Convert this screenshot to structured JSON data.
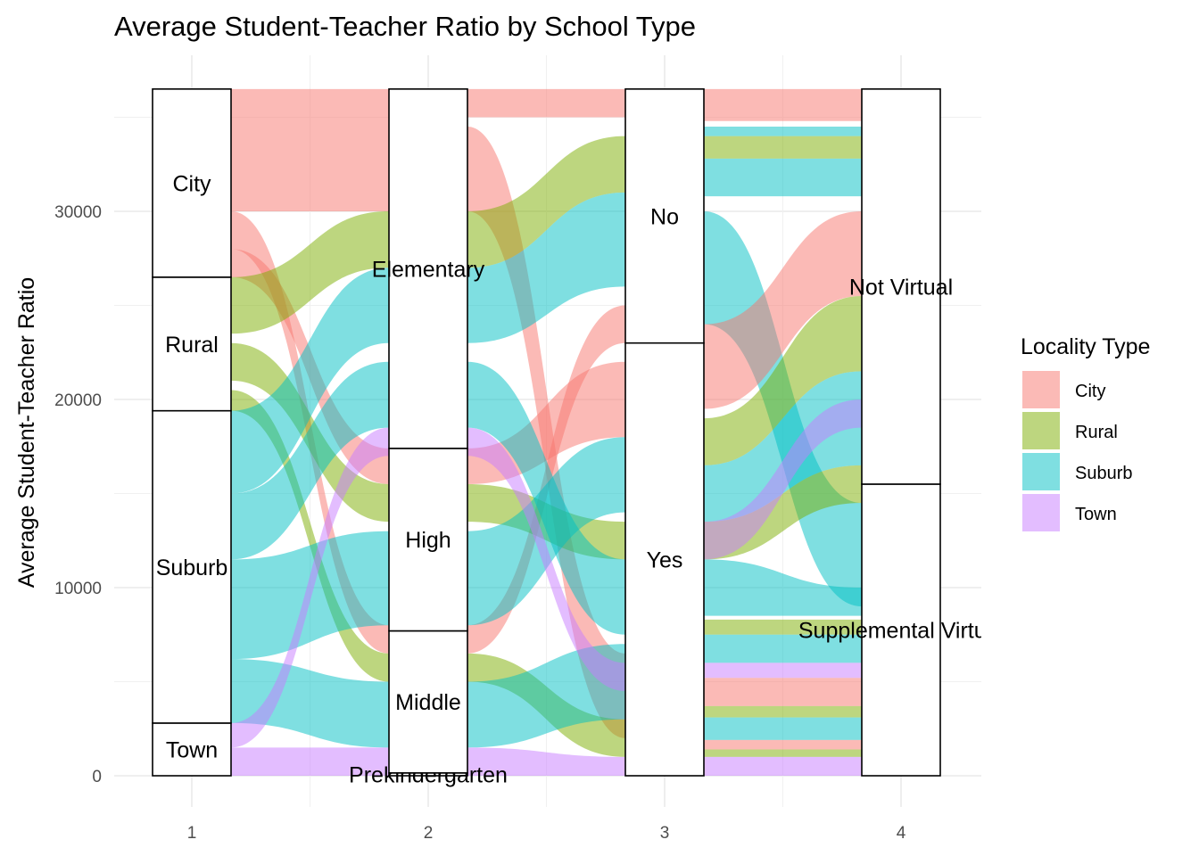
{
  "chart_data": {
    "type": "alluvial",
    "title": "Average Student-Teacher Ratio by School Type",
    "xlabel": "",
    "ylabel": "Average Student-Teacher Ratio",
    "ylim": [
      0,
      36500
    ],
    "y_ticks": [
      0,
      10000,
      20000,
      30000
    ],
    "x_ticks": [
      "1",
      "2",
      "3",
      "4"
    ],
    "grid": true,
    "legend": {
      "title": "Locality Type",
      "placement": "right",
      "entries": [
        {
          "name": "City",
          "color": "#F8766D"
        },
        {
          "name": "Rural",
          "color": "#7CAE00"
        },
        {
          "name": "Suburb",
          "color": "#00BFC4"
        },
        {
          "name": "Town",
          "color": "#C77CFF"
        }
      ]
    },
    "axes": [
      {
        "position": 1,
        "strata": [
          {
            "label": "Town",
            "y0": 0,
            "y1": 2800
          },
          {
            "label": "Suburb",
            "y0": 2800,
            "y1": 19400
          },
          {
            "label": "Rural",
            "y0": 19400,
            "y1": 26500
          },
          {
            "label": "City",
            "y0": 26500,
            "y1": 36500
          }
        ]
      },
      {
        "position": 2,
        "strata": [
          {
            "label": "Prekindergarten",
            "y0": 0,
            "y1": 150
          },
          {
            "label": "Middle",
            "y0": 150,
            "y1": 7700
          },
          {
            "label": "High",
            "y0": 7700,
            "y1": 17400
          },
          {
            "label": "Elementary",
            "y0": 17400,
            "y1": 36500
          }
        ]
      },
      {
        "position": 3,
        "strata": [
          {
            "label": "Yes",
            "y0": 0,
            "y1": 23000
          },
          {
            "label": "No",
            "y0": 23000,
            "y1": 36500
          }
        ]
      },
      {
        "position": 4,
        "strata": [
          {
            "label": "Supplemental Virtual",
            "y0": 0,
            "y1": 15500
          },
          {
            "label": "Not Virtual",
            "y0": 15500,
            "y1": 36500
          }
        ]
      }
    ],
    "flows": [
      {
        "from": 1,
        "to": 2,
        "locality": "City",
        "y0a": 30000,
        "y1a": 36500,
        "y0b": 30000,
        "y1b": 36500
      },
      {
        "from": 1,
        "to": 2,
        "locality": "City",
        "y0a": 28000,
        "y1a": 30000,
        "y0b": 6500,
        "y1b": 8000
      },
      {
        "from": 1,
        "to": 2,
        "locality": "City",
        "y0a": 26500,
        "y1a": 28000,
        "y0b": 15500,
        "y1b": 17400
      },
      {
        "from": 1,
        "to": 2,
        "locality": "Rural",
        "y0a": 23500,
        "y1a": 26500,
        "y0b": 27000,
        "y1b": 30000
      },
      {
        "from": 1,
        "to": 2,
        "locality": "Rural",
        "y0a": 21000,
        "y1a": 23000,
        "y0b": 13500,
        "y1b": 15500
      },
      {
        "from": 1,
        "to": 2,
        "locality": "Rural",
        "y0a": 19400,
        "y1a": 20500,
        "y0b": 5000,
        "y1b": 6500
      },
      {
        "from": 1,
        "to": 2,
        "locality": "Suburb",
        "y0a": 15000,
        "y1a": 19400,
        "y0b": 23000,
        "y1b": 27000
      },
      {
        "from": 1,
        "to": 2,
        "locality": "Suburb",
        "y0a": 11500,
        "y1a": 15000,
        "y0b": 18500,
        "y1b": 22000
      },
      {
        "from": 1,
        "to": 2,
        "locality": "Suburb",
        "y0a": 6200,
        "y1a": 11500,
        "y0b": 8000,
        "y1b": 13000
      },
      {
        "from": 1,
        "to": 2,
        "locality": "Suburb",
        "y0a": 2800,
        "y1a": 6200,
        "y0b": 1500,
        "y1b": 5000
      },
      {
        "from": 1,
        "to": 2,
        "locality": "Town",
        "y0a": 1500,
        "y1a": 2800,
        "y0b": 17000,
        "y1b": 18500
      },
      {
        "from": 1,
        "to": 2,
        "locality": "Town",
        "y0a": 0,
        "y1a": 1500,
        "y0b": 0,
        "y1b": 1500
      },
      {
        "from": 2,
        "to": 3,
        "locality": "City",
        "y0a": 35000,
        "y1a": 36500,
        "y0b": 35000,
        "y1b": 36500
      },
      {
        "from": 2,
        "to": 3,
        "locality": "City",
        "y0a": 30000,
        "y1a": 34500,
        "y0b": 2000,
        "y1b": 6500
      },
      {
        "from": 2,
        "to": 3,
        "locality": "City",
        "y0a": 15500,
        "y1a": 17400,
        "y0b": 18000,
        "y1b": 22000
      },
      {
        "from": 2,
        "to": 3,
        "locality": "City",
        "y0a": 6500,
        "y1a": 8000,
        "y0b": 23000,
        "y1b": 25000
      },
      {
        "from": 2,
        "to": 3,
        "locality": "Rural",
        "y0a": 27000,
        "y1a": 30000,
        "y0b": 31000,
        "y1b": 34000
      },
      {
        "from": 2,
        "to": 3,
        "locality": "Rural",
        "y0a": 13500,
        "y1a": 15500,
        "y0b": 11500,
        "y1b": 13500
      },
      {
        "from": 2,
        "to": 3,
        "locality": "Rural",
        "y0a": 5000,
        "y1a": 6500,
        "y0b": 1000,
        "y1b": 3000
      },
      {
        "from": 2,
        "to": 3,
        "locality": "Suburb",
        "y0a": 23000,
        "y1a": 27000,
        "y0b": 26000,
        "y1b": 31000
      },
      {
        "from": 2,
        "to": 3,
        "locality": "Suburb",
        "y0a": 18500,
        "y1a": 22000,
        "y0b": 7500,
        "y1b": 11500
      },
      {
        "from": 2,
        "to": 3,
        "locality": "Suburb",
        "y0a": 8000,
        "y1a": 13000,
        "y0b": 14000,
        "y1b": 18000
      },
      {
        "from": 2,
        "to": 3,
        "locality": "Suburb",
        "y0a": 1500,
        "y1a": 5000,
        "y0b": 3000,
        "y1b": 7000
      },
      {
        "from": 2,
        "to": 3,
        "locality": "Town",
        "y0a": 17000,
        "y1a": 18500,
        "y0b": 4500,
        "y1b": 6000
      },
      {
        "from": 2,
        "to": 3,
        "locality": "Town",
        "y0a": 0,
        "y1a": 1500,
        "y0b": 0,
        "y1b": 1000
      },
      {
        "from": 3,
        "to": 4,
        "locality": "City",
        "y0a": 34800,
        "y1a": 36500,
        "y0b": 34800,
        "y1b": 36500
      },
      {
        "from": 3,
        "to": 4,
        "locality": "Rural",
        "y0a": 32800,
        "y1a": 34000,
        "y0b": 32800,
        "y1b": 34000
      },
      {
        "from": 3,
        "to": 4,
        "locality": "Suburb",
        "y0a": 30800,
        "y1a": 32800,
        "y0b": 30800,
        "y1b": 32800
      },
      {
        "from": 3,
        "to": 4,
        "locality": "Suburb",
        "y0a": 34000,
        "y1a": 34500,
        "y0b": 34000,
        "y1b": 34500
      },
      {
        "from": 3,
        "to": 4,
        "locality": "Suburb",
        "y0a": 24000,
        "y1a": 30000,
        "y0b": 9000,
        "y1b": 14500
      },
      {
        "from": 3,
        "to": 4,
        "locality": "City",
        "y0a": 19500,
        "y1a": 24000,
        "y0b": 25500,
        "y1b": 30000
      },
      {
        "from": 3,
        "to": 4,
        "locality": "Rural",
        "y0a": 16500,
        "y1a": 19000,
        "y0b": 21500,
        "y1b": 25500
      },
      {
        "from": 3,
        "to": 4,
        "locality": "Suburb",
        "y0a": 13500,
        "y1a": 16500,
        "y0b": 16500,
        "y1b": 21500
      },
      {
        "from": 3,
        "to": 4,
        "locality": "Rural",
        "y0a": 11500,
        "y1a": 13500,
        "y0b": 14500,
        "y1b": 16500
      },
      {
        "from": 3,
        "to": 4,
        "locality": "Suburb",
        "y0a": 8500,
        "y1a": 11500,
        "y0b": 8500,
        "y1b": 10000
      },
      {
        "from": 3,
        "to": 4,
        "locality": "Town",
        "y0a": 11500,
        "y1a": 13500,
        "y0b": 18500,
        "y1b": 20000
      },
      {
        "from": 3,
        "to": 4,
        "locality": "Rural",
        "y0a": 7500,
        "y1a": 8300,
        "y0b": 7500,
        "y1b": 8300
      },
      {
        "from": 3,
        "to": 4,
        "locality": "Suburb",
        "y0a": 6000,
        "y1a": 7500,
        "y0b": 6000,
        "y1b": 7500
      },
      {
        "from": 3,
        "to": 4,
        "locality": "Town",
        "y0a": 5200,
        "y1a": 6000,
        "y0b": 5200,
        "y1b": 6000
      },
      {
        "from": 3,
        "to": 4,
        "locality": "City",
        "y0a": 3700,
        "y1a": 5200,
        "y0b": 3700,
        "y1b": 5200
      },
      {
        "from": 3,
        "to": 4,
        "locality": "Rural",
        "y0a": 3100,
        "y1a": 3700,
        "y0b": 3100,
        "y1b": 3700
      },
      {
        "from": 3,
        "to": 4,
        "locality": "Suburb",
        "y0a": 1900,
        "y1a": 3100,
        "y0b": 1900,
        "y1b": 3100
      },
      {
        "from": 3,
        "to": 4,
        "locality": "City",
        "y0a": 1400,
        "y1a": 1900,
        "y0b": 1400,
        "y1b": 1900
      },
      {
        "from": 3,
        "to": 4,
        "locality": "Rural",
        "y0a": 1000,
        "y1a": 1400,
        "y0b": 1000,
        "y1b": 1400
      },
      {
        "from": 3,
        "to": 4,
        "locality": "Town",
        "y0a": 0,
        "y1a": 1000,
        "y0b": 0,
        "y1b": 1000
      }
    ]
  }
}
